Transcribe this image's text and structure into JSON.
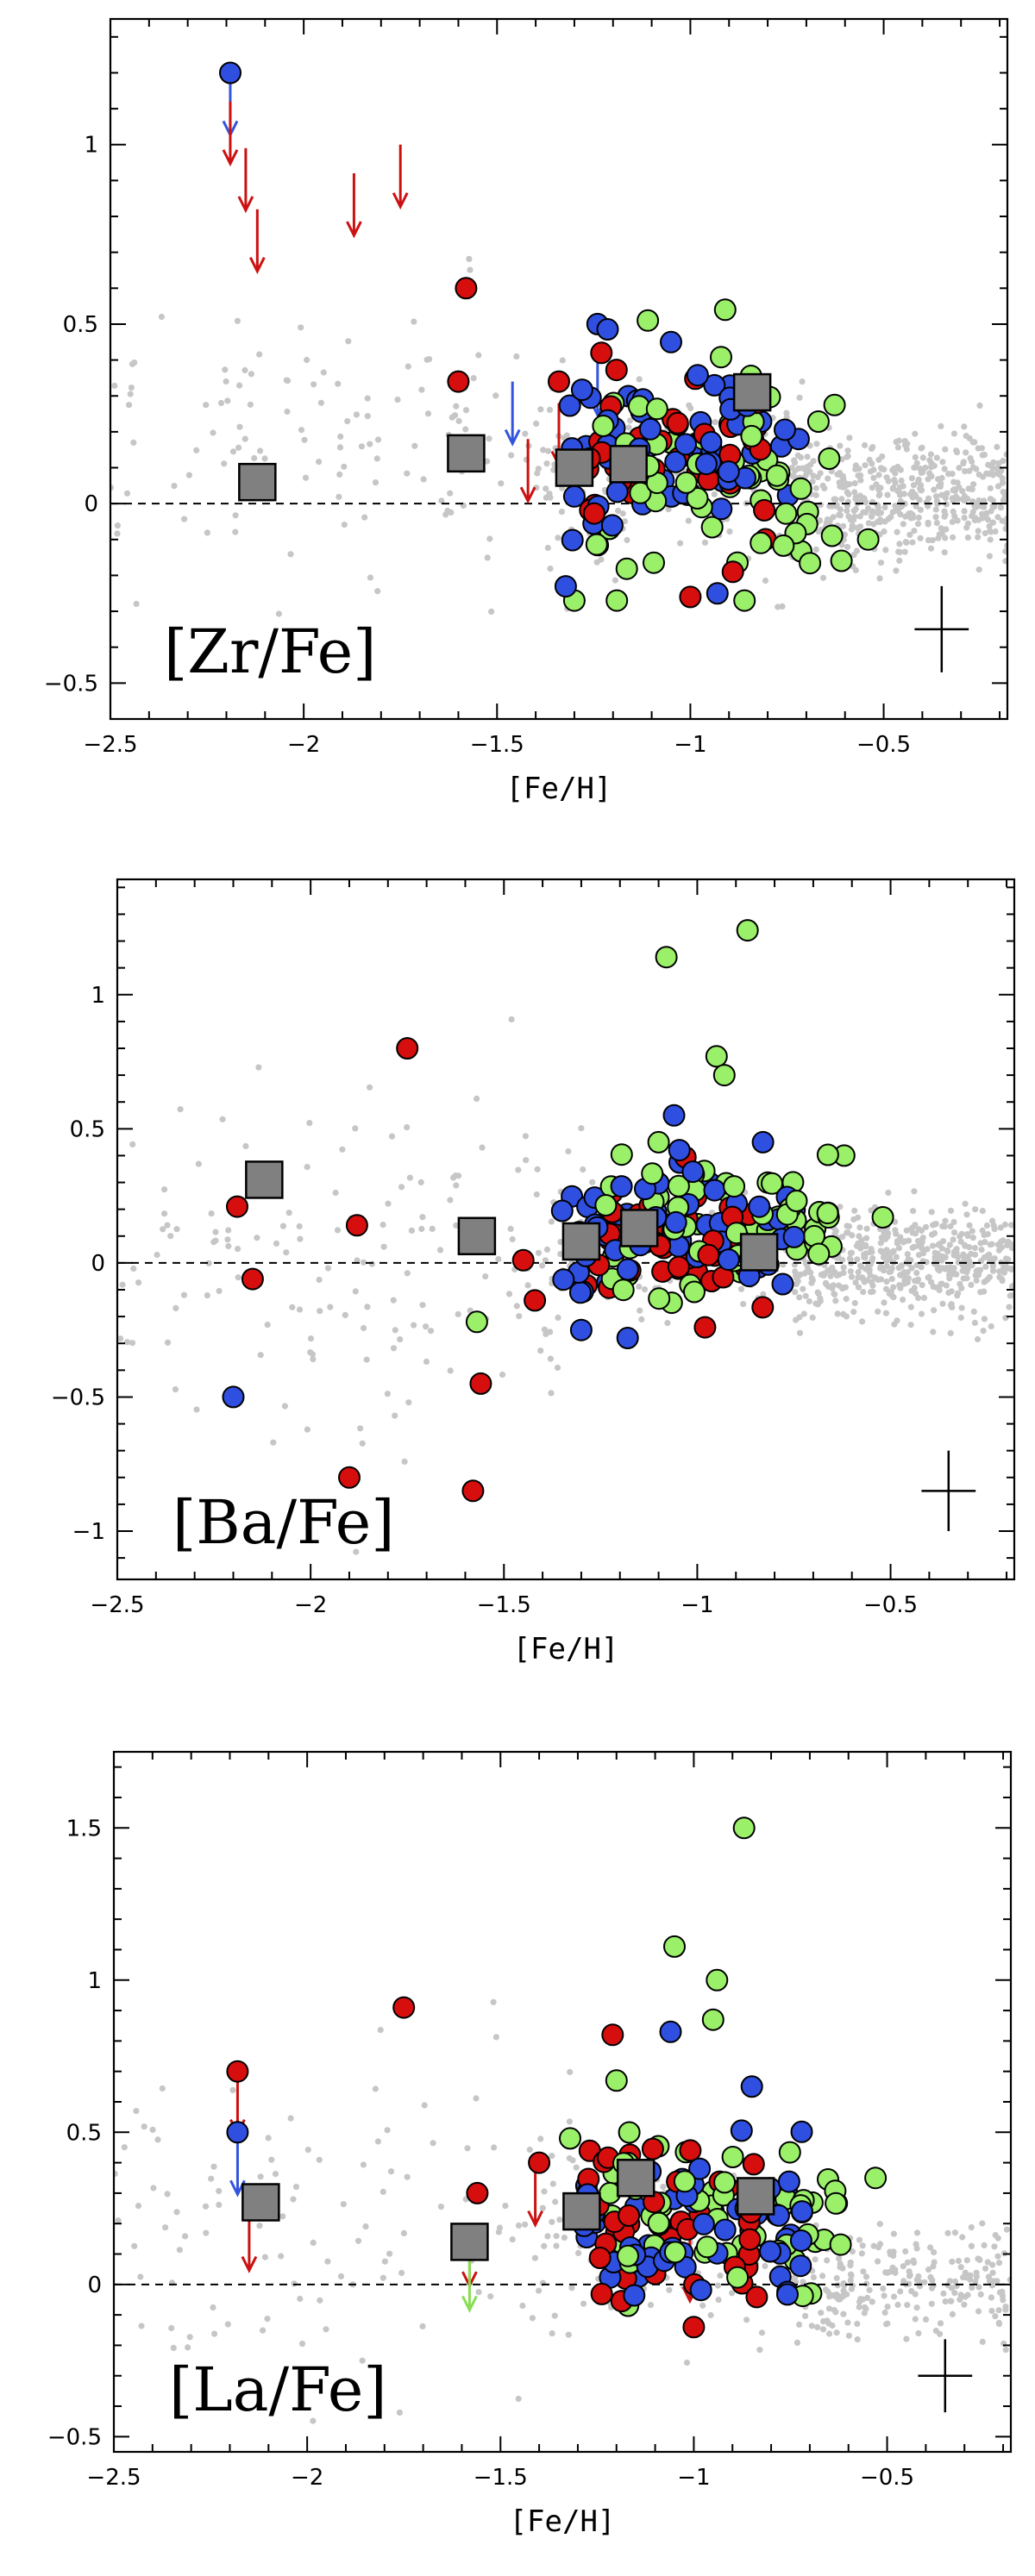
{
  "colors": {
    "background": "#c6c6c6",
    "blue": "#2f4fe0",
    "red": "#d60e0e",
    "green": "#9bf06a",
    "square": "#808080",
    "arrow_blue": "#3355dd",
    "arrow_red": "#cc1111",
    "arrow_green": "#88dd55"
  },
  "chart_data": [
    {
      "type": "scatter",
      "title": "[Zr/Fe]",
      "xlabel": "[Fe/H]",
      "ylabel": "",
      "xlim": [
        -2.5,
        -0.18
      ],
      "ylim": [
        -0.6,
        1.35
      ],
      "xticks": [
        -2.5,
        -2,
        -1.5,
        -1,
        -0.5
      ],
      "xticklabels": [
        "−2.5",
        "−2",
        "−1.5",
        "−1",
        "−0.5"
      ],
      "yticks": [
        -0.5,
        0,
        0.5,
        1
      ],
      "yticklabels": [
        "−0.5",
        "0",
        "0.5",
        "1"
      ],
      "zero_line": 0,
      "error_bar": {
        "x": -0.35,
        "y": -0.35,
        "xerr": 0.07,
        "yerr": 0.12
      },
      "background": {
        "seed": 11,
        "clusters": [
          {
            "n": 520,
            "xmin": -0.75,
            "xmax": -0.18,
            "ymean": 0.02,
            "ysd": 0.09
          },
          {
            "n": 130,
            "xmin": -2.5,
            "xmax": -1.3,
            "ymean": 0.18,
            "ysd": 0.22
          },
          {
            "n": 140,
            "xmin": -1.4,
            "xmax": -0.75,
            "ymean": 0.08,
            "ysd": 0.13
          }
        ]
      },
      "series": [
        {
          "name": "blue",
          "color": "#2f4fe0",
          "seed": 21,
          "cluster": {
            "n": 60,
            "x": [
              -1.35,
              -0.72
            ],
            "ymean": 0.14,
            "ysd": 0.12
          },
          "points": [
            [
              -2.19,
              1.2
            ],
            [
              -1.24,
              0.5
            ],
            [
              -1.05,
              0.45
            ],
            [
              -0.72,
              0.18
            ],
            [
              -0.93,
              -0.25
            ],
            [
              -1.3,
              0.02
            ]
          ]
        },
        {
          "name": "red",
          "color": "#d60e0e",
          "seed": 31,
          "cluster": {
            "n": 35,
            "x": [
              -1.32,
              -0.8
            ],
            "ymean": 0.12,
            "ysd": 0.12
          },
          "points": [
            [
              -1.58,
              0.6
            ],
            [
              -1.6,
              0.34
            ],
            [
              -1.23,
              0.42
            ],
            [
              -1.0,
              -0.26
            ],
            [
              -0.89,
              -0.19
            ],
            [
              -1.34,
              0.34
            ]
          ]
        },
        {
          "name": "green",
          "color": "#9bf06a",
          "seed": 41,
          "cluster": {
            "n": 55,
            "x": [
              -1.25,
              -0.6
            ],
            "ymean": 0.05,
            "ysd": 0.14
          },
          "points": [
            [
              -0.91,
              0.54
            ],
            [
              -1.11,
              0.51
            ],
            [
              -0.86,
              -0.27
            ],
            [
              -1.3,
              -0.27
            ],
            [
              -1.19,
              -0.27
            ],
            [
              -0.54,
              -0.1
            ]
          ]
        }
      ],
      "squares": [
        [
          -2.12,
          0.06
        ],
        [
          -1.58,
          0.14
        ],
        [
          -1.3,
          0.1
        ],
        [
          -1.16,
          0.11
        ],
        [
          -0.84,
          0.31
        ]
      ],
      "upper_limits": [
        {
          "x": -2.19,
          "y": 1.2,
          "color": "blue"
        },
        {
          "x": -2.19,
          "y": 1.12,
          "color": "red"
        },
        {
          "x": -2.15,
          "y": 0.99,
          "color": "red"
        },
        {
          "x": -2.12,
          "y": 0.82,
          "color": "red"
        },
        {
          "x": -1.87,
          "y": 0.92,
          "color": "red"
        },
        {
          "x": -1.75,
          "y": 1.0,
          "color": "red"
        },
        {
          "x": -1.46,
          "y": 0.34,
          "color": "blue"
        },
        {
          "x": -1.42,
          "y": 0.18,
          "color": "red"
        },
        {
          "x": -1.24,
          "y": 0.42,
          "color": "blue"
        },
        {
          "x": -1.34,
          "y": 0.28,
          "color": "red"
        }
      ]
    },
    {
      "type": "scatter",
      "title": "[Ba/Fe]",
      "xlabel": "[Fe/H]",
      "ylabel": "",
      "xlim": [
        -2.5,
        -0.18
      ],
      "ylim": [
        -1.18,
        1.43
      ],
      "xticks": [
        -2.5,
        -2,
        -1.5,
        -1,
        -0.5
      ],
      "xticklabels": [
        "−2.5",
        "−2",
        "−1.5",
        "−1",
        "−0.5"
      ],
      "yticks": [
        -1,
        -0.5,
        0,
        0.5,
        1
      ],
      "yticklabels": [
        "−1",
        "−0.5",
        "0",
        "0.5",
        "1"
      ],
      "zero_line": 0,
      "error_bar": {
        "x": -0.35,
        "y": -0.85,
        "xerr": 0.07,
        "yerr": 0.15
      },
      "background": {
        "seed": 12,
        "clusters": [
          {
            "n": 520,
            "xmin": -0.75,
            "xmax": -0.18,
            "ymean": 0.0,
            "ysd": 0.1
          },
          {
            "n": 160,
            "xmin": -2.5,
            "xmax": -1.3,
            "ymean": -0.05,
            "ysd": 0.3
          },
          {
            "n": 120,
            "xmin": -1.4,
            "xmax": -0.75,
            "ymean": 0.05,
            "ysd": 0.13
          }
        ]
      },
      "series": [
        {
          "name": "blue",
          "color": "#2f4fe0",
          "seed": 22,
          "cluster": {
            "n": 60,
            "x": [
              -1.35,
              -0.72
            ],
            "ymean": 0.13,
            "ysd": 0.13
          },
          "points": [
            [
              -2.2,
              -0.5
            ],
            [
              -1.06,
              0.55
            ],
            [
              -1.18,
              -0.28
            ],
            [
              -1.3,
              -0.25
            ],
            [
              -0.83,
              0.45
            ]
          ]
        },
        {
          "name": "red",
          "color": "#d60e0e",
          "seed": 32,
          "cluster": {
            "n": 40,
            "x": [
              -1.3,
              -0.8
            ],
            "ymean": 0.1,
            "ysd": 0.15
          },
          "points": [
            [
              -2.19,
              0.21
            ],
            [
              -2.15,
              -0.06
            ],
            [
              -1.88,
              0.14
            ],
            [
              -1.75,
              0.8
            ],
            [
              -1.9,
              -0.8
            ],
            [
              -1.58,
              -0.85
            ],
            [
              -1.56,
              -0.45
            ],
            [
              -1.42,
              -0.14
            ],
            [
              -0.98,
              -0.24
            ],
            [
              -1.45,
              0.01
            ]
          ]
        },
        {
          "name": "green",
          "color": "#9bf06a",
          "seed": 42,
          "cluster": {
            "n": 60,
            "x": [
              -1.25,
              -0.65
            ],
            "ymean": 0.14,
            "ysd": 0.14
          },
          "points": [
            [
              -1.08,
              1.14
            ],
            [
              -0.87,
              1.24
            ],
            [
              -0.95,
              0.77
            ],
            [
              -0.93,
              0.7
            ],
            [
              -1.57,
              -0.22
            ],
            [
              -0.62,
              0.4
            ],
            [
              -0.52,
              0.17
            ],
            [
              -1.1,
              0.45
            ]
          ]
        }
      ],
      "squares": [
        [
          -2.12,
          0.31
        ],
        [
          -1.57,
          0.1
        ],
        [
          -1.3,
          0.08
        ],
        [
          -1.15,
          0.13
        ],
        [
          -0.84,
          0.04
        ]
      ],
      "upper_limits": []
    },
    {
      "type": "scatter",
      "title": "[La/Fe]",
      "xlabel": "[Fe/H]",
      "ylabel": "",
      "xlim": [
        -2.5,
        -0.18
      ],
      "ylim": [
        -0.55,
        1.75
      ],
      "xticks": [
        -2.5,
        -2,
        -1.5,
        -1,
        -0.5
      ],
      "xticklabels": [
        "−2.5",
        "−2",
        "−1.5",
        "−1",
        "−0.5"
      ],
      "yticks": [
        -0.5,
        0,
        0.5,
        1,
        1.5
      ],
      "yticklabels": [
        "−0.5",
        "0",
        "0.5",
        "1",
        "1.5"
      ],
      "zero_line": 0,
      "error_bar": {
        "x": -0.35,
        "y": -0.3,
        "xerr": 0.07,
        "yerr": 0.12
      },
      "background": {
        "seed": 13,
        "clusters": [
          {
            "n": 240,
            "xmin": -0.75,
            "xmax": -0.18,
            "ymean": 0.0,
            "ysd": 0.09
          },
          {
            "n": 120,
            "xmin": -2.5,
            "xmax": -1.3,
            "ymean": 0.22,
            "ysd": 0.28
          },
          {
            "n": 90,
            "xmin": -1.4,
            "xmax": -0.75,
            "ymean": 0.12,
            "ysd": 0.14
          }
        ]
      },
      "series": [
        {
          "name": "blue",
          "color": "#2f4fe0",
          "seed": 23,
          "cluster": {
            "n": 60,
            "x": [
              -1.3,
              -0.72
            ],
            "ymean": 0.23,
            "ysd": 0.12
          },
          "points": [
            [
              -2.18,
              0.5
            ],
            [
              -1.06,
              0.83
            ],
            [
              -0.85,
              0.65
            ],
            [
              -0.72,
              0.24
            ]
          ]
        },
        {
          "name": "red",
          "color": "#d60e0e",
          "seed": 33,
          "cluster": {
            "n": 40,
            "x": [
              -1.3,
              -0.8
            ],
            "ymean": 0.2,
            "ysd": 0.13
          },
          "points": [
            [
              -2.18,
              0.7
            ],
            [
              -1.75,
              0.91
            ],
            [
              -1.21,
              0.82
            ],
            [
              -1.0,
              -0.14
            ],
            [
              -1.4,
              0.4
            ],
            [
              -1.56,
              0.3
            ]
          ]
        },
        {
          "name": "green",
          "color": "#9bf06a",
          "seed": 43,
          "cluster": {
            "n": 60,
            "x": [
              -1.25,
              -0.62
            ],
            "ymean": 0.22,
            "ysd": 0.13
          },
          "points": [
            [
              -0.87,
              1.5
            ],
            [
              -1.05,
              1.11
            ],
            [
              -0.94,
              1.0
            ],
            [
              -0.95,
              0.87
            ],
            [
              -1.2,
              0.67
            ],
            [
              -0.53,
              0.35
            ],
            [
              -1.17,
              -0.07
            ],
            [
              -1.32,
              0.48
            ]
          ]
        }
      ],
      "squares": [
        [
          -2.12,
          0.27
        ],
        [
          -1.58,
          0.14
        ],
        [
          -1.29,
          0.24
        ],
        [
          -1.15,
          0.35
        ],
        [
          -0.84,
          0.29
        ]
      ],
      "upper_limits": [
        {
          "x": -2.18,
          "y": 0.7,
          "color": "red"
        },
        {
          "x": -2.18,
          "y": 0.5,
          "color": "blue"
        },
        {
          "x": -2.15,
          "y": 0.25,
          "color": "red"
        },
        {
          "x": -1.58,
          "y": 0.2,
          "color": "red"
        },
        {
          "x": -1.58,
          "y": 0.12,
          "color": "green"
        },
        {
          "x": -1.41,
          "y": 0.4,
          "color": "red"
        },
        {
          "x": -1.15,
          "y": 0.15,
          "color": "green"
        },
        {
          "x": -1.01,
          "y": 0.15,
          "color": "red"
        }
      ]
    }
  ]
}
